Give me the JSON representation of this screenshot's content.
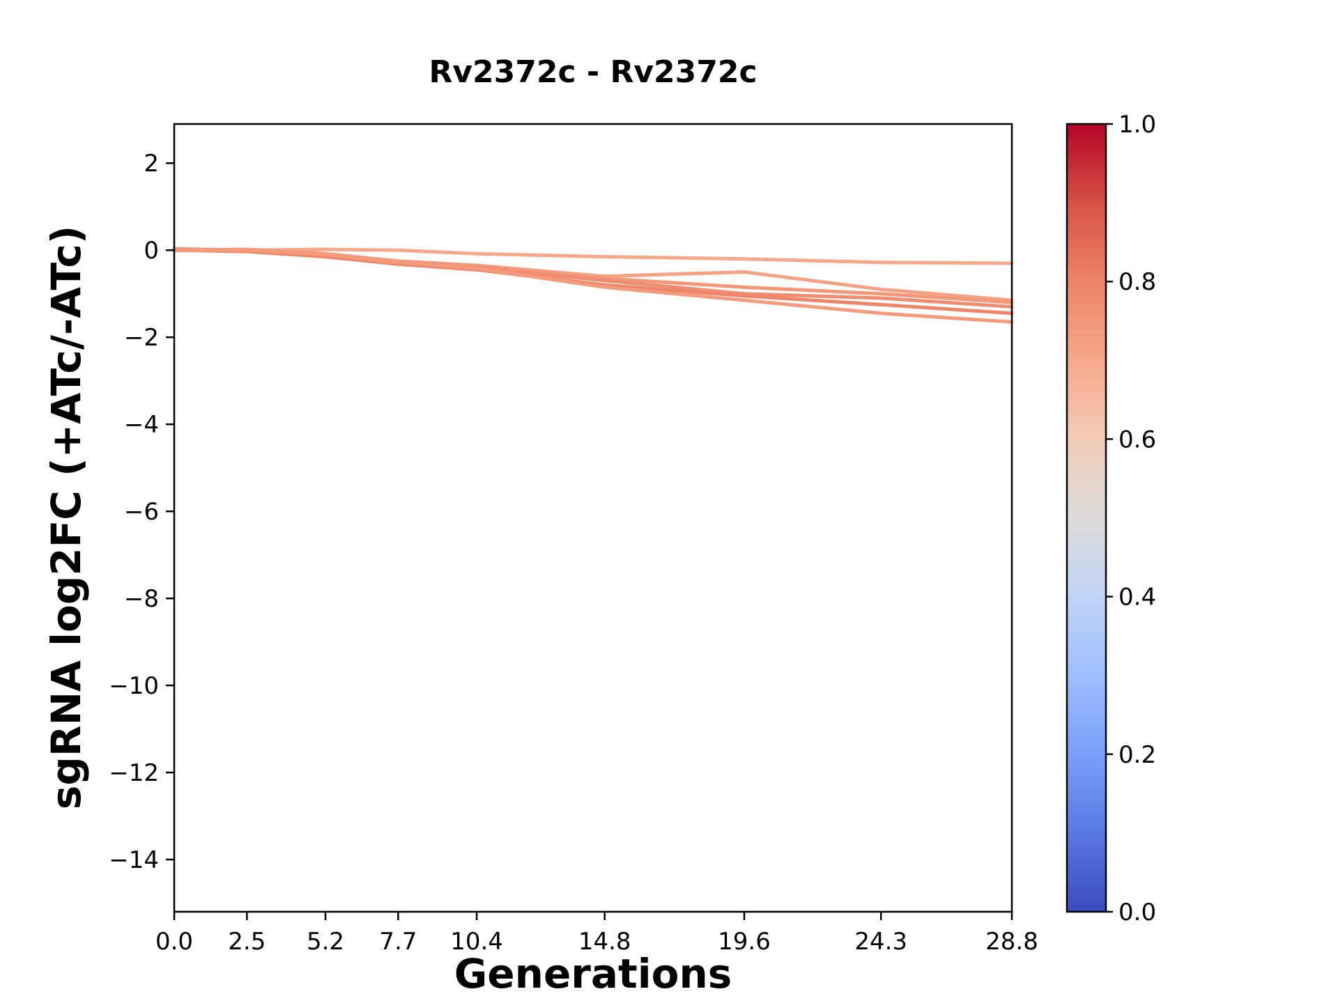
{
  "chart_data": {
    "type": "line",
    "title": "Rv2372c - Rv2372c",
    "xlabel": "Generations",
    "ylabel": "sgRNA log2FC (+ATc/-ATc)",
    "x": [
      0.0,
      2.5,
      5.2,
      7.7,
      10.4,
      14.8,
      19.6,
      24.3,
      28.8
    ],
    "x_tick_labels": [
      "0.0",
      "2.5",
      "5.2",
      "7.7",
      "10.4",
      "14.8",
      "19.6",
      "24.3",
      "28.8"
    ],
    "y_ticks": [
      2,
      0,
      -2,
      -4,
      -6,
      -8,
      -10,
      -12,
      -14
    ],
    "y_tick_labels": [
      "2",
      "0",
      "−2",
      "−4",
      "−6",
      "−8",
      "−10",
      "−12",
      "−14"
    ],
    "xlim": [
      0,
      28.8
    ],
    "ylim": [
      -15.2,
      2.9
    ],
    "grid": false,
    "line_width": 5,
    "axes_color": "#000000",
    "background_color": "#ffffff",
    "series": [
      {
        "color": "#f6a98a",
        "values": [
          0.02,
          0.0,
          0.02,
          0.0,
          -0.08,
          -0.15,
          -0.2,
          -0.28,
          -0.3
        ]
      },
      {
        "color": "#f5a183",
        "values": [
          0.0,
          -0.02,
          -0.1,
          -0.3,
          -0.35,
          -0.6,
          -0.5,
          -0.9,
          -1.15
        ]
      },
      {
        "color": "#f29778",
        "values": [
          0.0,
          0.02,
          -0.08,
          -0.25,
          -0.35,
          -0.65,
          -0.85,
          -1.0,
          -1.2
        ]
      },
      {
        "color": "#f08d70",
        "values": [
          0.03,
          0.0,
          -0.12,
          -0.3,
          -0.4,
          -0.7,
          -1.0,
          -1.1,
          -1.3
        ]
      },
      {
        "color": "#ee8468",
        "values": [
          0.0,
          -0.03,
          -0.15,
          -0.32,
          -0.45,
          -0.8,
          -1.05,
          -1.25,
          -1.45
        ]
      },
      {
        "color": "#f39b7c",
        "values": [
          0.0,
          0.0,
          -0.1,
          -0.28,
          -0.42,
          -0.85,
          -1.15,
          -1.45,
          -1.65
        ]
      }
    ],
    "colorbar": {
      "min": 0.0,
      "max": 1.0,
      "ticks": [
        0.0,
        0.2,
        0.4,
        0.6,
        0.8,
        1.0
      ],
      "tick_labels": [
        "0.0",
        "0.2",
        "0.4",
        "0.6",
        "0.8",
        "1.0"
      ],
      "colormap": "coolwarm",
      "gradient_stops_top_to_bottom": [
        "#b40426",
        "#d65244",
        "#ee8468",
        "#f6a889",
        "#f2cbb7",
        "#dddcdb",
        "#c0d4f5",
        "#9ebeff",
        "#7b9ff9",
        "#5977e3",
        "#3a4cc0"
      ]
    }
  }
}
